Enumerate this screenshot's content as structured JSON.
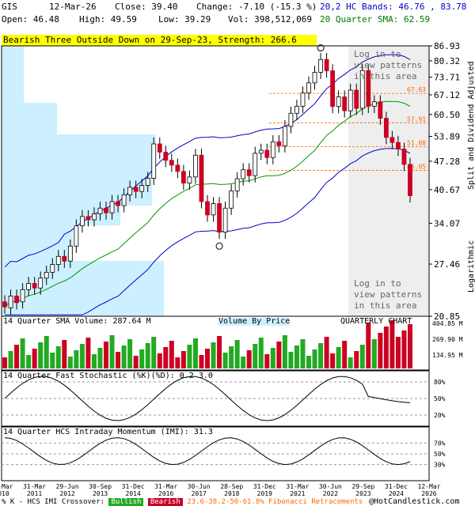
{
  "header": {
    "symbol": "GIS",
    "date": "12-Mar-26",
    "close_label": "Close: 39.40",
    "change_label": "Change: -7.10 (-15.3 %)",
    "open_label": "Open: 46.48",
    "high_label": "High: 49.59",
    "low_label": "Low: 39.29",
    "vol_label": "Vol: 398,512,069",
    "bands_label": "20,2 HC Bands: 46.76 , 83.78",
    "sma_label": "20 Quarter SMA: 62.59"
  },
  "banner": "Bearish Three Outside Down on 29-Sep-23, Strength: 266.6",
  "main_chart": {
    "y_ticks": [
      "86.93",
      "80.32",
      "73.71",
      "67.12",
      "60.50",
      "53.89",
      "47.28",
      "40.67",
      "34.07",
      "27.46",
      "20.85"
    ],
    "fib_labels": [
      "67.63",
      "57.91",
      "51.08",
      "45.05"
    ],
    "right_axis_label": "Split and Dividend Adjusted",
    "log_label": "Logarithmic",
    "login_top": [
      "Log in to",
      "view patterns",
      "in this area"
    ],
    "login_bottom": [
      "Log in to",
      "view patterns",
      "in this area"
    ]
  },
  "volume_panel": {
    "title": "14 Quarter SMA Volume: 287.64 M",
    "vbp_label": "Volume By Price",
    "period_label": "QUARTERLY CHART",
    "y_ticks": [
      "404.85 M",
      "269.90 M",
      "134.95 M"
    ]
  },
  "stoch_panel": {
    "title": "14 Quarter Fast Stochastic (%K)(%D): 0.2   3.0",
    "y_ticks": [
      "80%",
      "50%",
      "20%"
    ]
  },
  "momentum_panel": {
    "title": "14 Quarter HCS Intraday Momentum (IMI): 31.3",
    "y_ticks": [
      "70%",
      "50%",
      "30%"
    ]
  },
  "x_axis": {
    "labels": [
      {
        "top": "31-Mar",
        "bot": "2010"
      },
      {
        "top": "31-Mar",
        "bot": "2011"
      },
      {
        "top": "29-Jun",
        "bot": "2012"
      },
      {
        "top": "30-Sep",
        "bot": "2013"
      },
      {
        "top": "31-Dec",
        "bot": "2014"
      },
      {
        "top": "31-Mar",
        "bot": "2016"
      },
      {
        "top": "30-Jun",
        "bot": "2017"
      },
      {
        "top": "28-Sep",
        "bot": "2018"
      },
      {
        "top": "31-Dec",
        "bot": "2019"
      },
      {
        "top": "31-Mar",
        "bot": "2021"
      },
      {
        "top": "30-Jun",
        "bot": "2022"
      },
      {
        "top": "29-Sep",
        "bot": "2023"
      },
      {
        "top": "31-Dec",
        "bot": "2024"
      },
      {
        "top": "12-Mar",
        "bot": "2026"
      }
    ]
  },
  "footer": {
    "crossover_label": "% K - HCS IMI Crossover:",
    "bullish_label": "Bullish",
    "bearish_label": "Bearish",
    "fib_note": "23.6-38.2-50-61.8% Fibonacci Retracements",
    "copyright": "@HotCandlestick.com"
  },
  "colors": {
    "bull": "#22aa22",
    "bear": "#cc0022",
    "band": "#0000cc",
    "sma": "#009900",
    "vbp": "#ccf0ff",
    "fib": "#ff6600",
    "banner": "#ffff00"
  },
  "chart_data": {
    "type": "candlestick",
    "title": "GIS",
    "period": "quarterly",
    "scale": "log",
    "ylim": [
      20.85,
      86.93
    ],
    "series": [
      {
        "name": "price",
        "candles": [
          [
            22.5,
            21.9
          ],
          [
            21.8,
            23.2
          ],
          [
            23.2,
            22.4
          ],
          [
            22.5,
            24.0
          ],
          [
            24.0,
            24.8
          ],
          [
            24.8,
            24.2
          ],
          [
            24.2,
            25.5
          ],
          [
            25.5,
            26.3
          ],
          [
            26.3,
            27.4
          ],
          [
            27.4,
            28.6
          ],
          [
            28.6,
            27.9
          ],
          [
            27.9,
            30.2
          ],
          [
            30.2,
            33.6
          ],
          [
            33.6,
            35.3
          ],
          [
            35.3,
            34.7
          ],
          [
            34.7,
            35.8
          ],
          [
            35.8,
            36.9
          ],
          [
            36.9,
            36.0
          ],
          [
            36.0,
            38.2
          ],
          [
            38.2,
            37.4
          ],
          [
            37.4,
            39.6
          ],
          [
            39.6,
            41.2
          ],
          [
            41.2,
            40.3
          ],
          [
            40.3,
            41.6
          ],
          [
            41.6,
            43.2
          ],
          [
            43.2,
            51.8
          ],
          [
            51.8,
            49.6
          ],
          [
            49.6,
            47.5
          ],
          [
            47.5,
            46.3
          ],
          [
            46.3,
            44.8
          ],
          [
            44.8,
            42.1
          ],
          [
            42.1,
            43.5
          ],
          [
            43.5,
            48.8
          ],
          [
            48.8,
            38.2
          ],
          [
            38.2,
            35.6
          ],
          [
            35.6,
            37.8
          ],
          [
            37.8,
            32.5
          ],
          [
            32.5,
            36.9
          ],
          [
            36.9,
            40.4
          ],
          [
            40.4,
            43.1
          ],
          [
            43.1,
            45.2
          ],
          [
            45.2,
            43.8
          ],
          [
            43.8,
            49.3
          ],
          [
            49.3,
            50.1
          ],
          [
            50.1,
            48.2
          ],
          [
            48.2,
            52.4
          ],
          [
            52.4,
            51.3
          ],
          [
            51.3,
            56.8
          ],
          [
            56.8,
            60.9
          ],
          [
            60.9,
            63.2
          ],
          [
            63.2,
            67.8
          ],
          [
            67.8,
            71.5
          ],
          [
            71.5,
            75.6
          ],
          [
            75.6,
            80.9
          ],
          [
            80.9,
            76.2
          ],
          [
            76.2,
            63.1
          ],
          [
            63.1,
            66.4
          ],
          [
            66.4,
            61.7
          ],
          [
            61.7,
            68.8
          ],
          [
            68.8,
            62.5
          ],
          [
            62.5,
            76.3
          ],
          [
            76.3,
            63.2
          ],
          [
            63.2,
            64.7
          ],
          [
            64.7,
            59.3
          ],
          [
            59.3,
            53.6
          ],
          [
            53.6,
            52.2
          ],
          [
            52.2,
            50.4
          ],
          [
            50.4,
            46.5
          ],
          [
            46.5,
            39.4
          ]
        ]
      },
      {
        "name": "20 Quarter SMA"
      },
      {
        "name": "20,2 HC Bands"
      }
    ]
  }
}
